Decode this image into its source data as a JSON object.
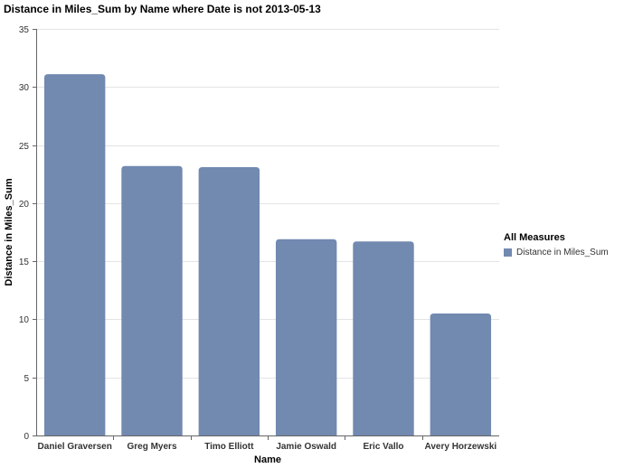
{
  "chart_data": {
    "type": "bar",
    "title": "Distance in Miles_Sum by Name where Date is not 2013-05-13",
    "xlabel": "Name",
    "ylabel": "Distance in Miles_Sum",
    "categories": [
      "Daniel Graversen",
      "Greg Myers",
      "Timo Elliott",
      "Jamie Oswald",
      "Eric Vallo",
      "Avery Horzewski"
    ],
    "series": [
      {
        "name": "Distance in Miles_Sum",
        "values": [
          31.1,
          23.2,
          23.1,
          16.9,
          16.7,
          10.5
        ],
        "color": "#7289B0"
      }
    ],
    "ylim": [
      0,
      35
    ],
    "yticks": [
      0,
      5,
      10,
      15,
      20,
      25,
      30,
      35
    ],
    "grid": true,
    "legend": {
      "title": "All Measures",
      "position": "right"
    }
  }
}
